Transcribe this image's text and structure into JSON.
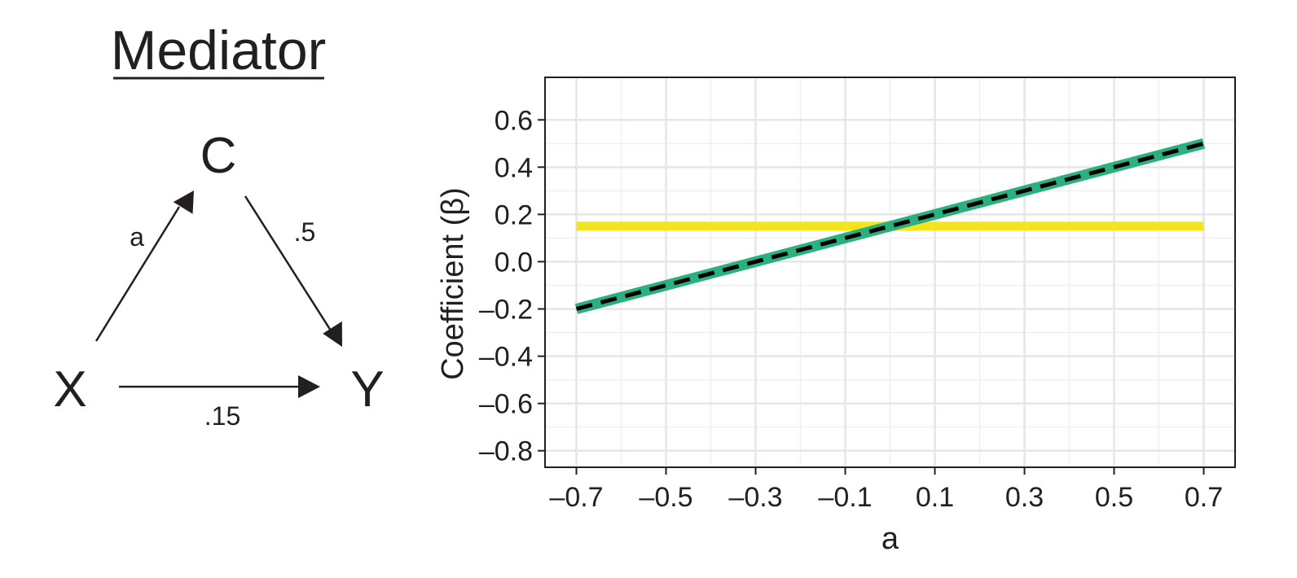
{
  "diagram": {
    "title": "Mediator",
    "nodes": {
      "x": "X",
      "c": "C",
      "y": "Y"
    },
    "edges": {
      "x_to_c": "a",
      "c_to_y": ".5",
      "x_to_y": ".15"
    }
  },
  "chart_data": {
    "type": "line",
    "title": "",
    "xlabel": "a",
    "ylabel": "Coefficient (β)",
    "xlim": [
      -0.77,
      0.77
    ],
    "ylim": [
      -0.87,
      0.78
    ],
    "xticks": [
      -0.7,
      -0.5,
      -0.3,
      -0.1,
      0.1,
      0.3,
      0.5,
      0.7
    ],
    "xtick_labels": [
      "–0.7",
      "–0.5",
      "–0.3",
      "–0.1",
      "0.1",
      "0.3",
      "0.5",
      "0.7"
    ],
    "yticks": [
      0.6,
      0.4,
      0.2,
      0.0,
      -0.2,
      -0.4,
      -0.6,
      -0.8
    ],
    "ytick_labels": [
      "0.6",
      "0.4",
      "0.2",
      "0.0",
      "–0.2",
      "–0.4",
      "–0.6",
      "–0.8"
    ],
    "grid": true,
    "series": [
      {
        "x": [
          -0.7,
          0.7
        ],
        "y": [
          0.15,
          0.15
        ],
        "color": "#f2e51f",
        "style": "solid"
      },
      {
        "x": [
          -0.7,
          0.7
        ],
        "y": [
          -0.2,
          0.5
        ],
        "color": "#2bb07f",
        "style": "solid"
      },
      {
        "x": [
          -0.7,
          0.7
        ],
        "y": [
          -0.2,
          0.5
        ],
        "color": "#000000",
        "style": "dashed"
      }
    ]
  }
}
